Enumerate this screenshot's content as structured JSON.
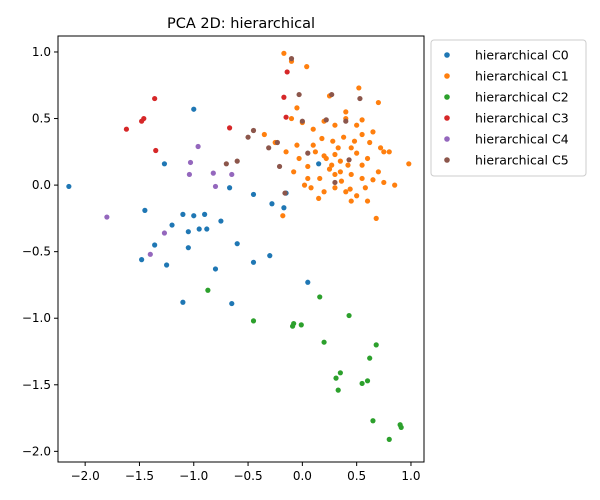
{
  "chart_data": {
    "type": "scatter",
    "title": "PCA 2D: hierarchical",
    "xlabel": "",
    "ylabel": "",
    "xlim": [
      -2.25,
      1.12
    ],
    "ylim": [
      -2.08,
      1.12
    ],
    "xticks": [
      -2.0,
      -1.5,
      -1.0,
      -0.5,
      0.0,
      0.5,
      1.0
    ],
    "xtick_labels": [
      "−2.0",
      "−1.5",
      "−1.0",
      "−0.5",
      "0.0",
      "0.5",
      "1.0"
    ],
    "yticks": [
      -2.0,
      -1.5,
      -1.0,
      -0.5,
      0.0,
      0.5,
      1.0
    ],
    "ytick_labels": [
      "−2.0",
      "−1.5",
      "−1.0",
      "−0.5",
      "0.0",
      "0.5",
      "1.0"
    ],
    "grid": false,
    "legend_position": "outside upper right",
    "series": [
      {
        "name": "hierarchical C0",
        "color": "#1f77b4",
        "points": [
          [
            -2.15,
            -0.01
          ],
          [
            -1.0,
            0.57
          ],
          [
            -1.27,
            0.16
          ],
          [
            -1.45,
            -0.19
          ],
          [
            -1.1,
            -0.22
          ],
          [
            -1.0,
            -0.23
          ],
          [
            -0.9,
            -0.22
          ],
          [
            -1.2,
            -0.3
          ],
          [
            -1.05,
            -0.35
          ],
          [
            -0.95,
            -0.33
          ],
          [
            -0.88,
            -0.33
          ],
          [
            -0.75,
            -0.27
          ],
          [
            -1.36,
            -0.45
          ],
          [
            -1.05,
            -0.47
          ],
          [
            -0.6,
            -0.44
          ],
          [
            -0.67,
            -0.02
          ],
          [
            -0.45,
            -0.07
          ],
          [
            -0.28,
            -0.14
          ],
          [
            -0.17,
            -0.17
          ],
          [
            -1.48,
            -0.56
          ],
          [
            -1.25,
            -0.6
          ],
          [
            -0.8,
            -0.63
          ],
          [
            -0.45,
            -0.58
          ],
          [
            -0.3,
            -0.53
          ],
          [
            -1.1,
            -0.88
          ],
          [
            -0.65,
            -0.89
          ],
          [
            0.05,
            -0.73
          ],
          [
            -0.15,
            -0.06
          ],
          [
            0.15,
            0.16
          ]
        ]
      },
      {
        "name": "hierarchical C1",
        "color": "#ff7f0e",
        "points": [
          [
            -0.17,
            0.99
          ],
          [
            -0.1,
            0.93
          ],
          [
            0.04,
            0.89
          ],
          [
            0.52,
            0.73
          ],
          [
            0.7,
            0.62
          ],
          [
            -0.05,
            0.58
          ],
          [
            0.0,
            0.47
          ],
          [
            -0.1,
            0.5
          ],
          [
            0.25,
            0.67
          ],
          [
            0.4,
            0.55
          ],
          [
            0.55,
            0.49
          ],
          [
            0.65,
            0.4
          ],
          [
            0.45,
            0.28
          ],
          [
            0.72,
            0.28
          ],
          [
            0.75,
            0.25
          ],
          [
            0.5,
            0.24
          ],
          [
            0.3,
            0.23
          ],
          [
            0.2,
            0.22
          ],
          [
            0.1,
            0.3
          ],
          [
            0.05,
            0.14
          ],
          [
            0.25,
            0.12
          ],
          [
            0.35,
            0.1
          ],
          [
            0.45,
            0.08
          ],
          [
            0.55,
            0.05
          ],
          [
            0.65,
            0.04
          ],
          [
            0.75,
            0.02
          ],
          [
            0.85,
            0.0
          ],
          [
            0.98,
            0.16
          ],
          [
            0.3,
            -0.02
          ],
          [
            0.2,
            -0.05
          ],
          [
            0.15,
            -0.1
          ],
          [
            0.4,
            -0.05
          ],
          [
            0.5,
            -0.08
          ],
          [
            0.6,
            -0.12
          ],
          [
            0.68,
            -0.25
          ],
          [
            0.45,
            -0.12
          ],
          [
            0.55,
            0.15
          ],
          [
            0.35,
            0.18
          ],
          [
            0.22,
            0.2
          ],
          [
            -0.35,
            0.38
          ],
          [
            -0.25,
            0.32
          ],
          [
            -0.15,
            0.25
          ],
          [
            -0.05,
            0.3
          ],
          [
            0.1,
            0.42
          ],
          [
            0.2,
            0.48
          ],
          [
            0.3,
            0.45
          ],
          [
            0.55,
            0.38
          ],
          [
            0.48,
            0.33
          ],
          [
            0.38,
            0.36
          ],
          [
            0.28,
            0.33
          ],
          [
            0.18,
            0.35
          ],
          [
            0.12,
            0.25
          ],
          [
            0.02,
            0.0
          ],
          [
            -0.18,
            -0.23
          ],
          [
            0.05,
            0.05
          ],
          [
            0.16,
            0.05
          ],
          [
            0.3,
            0.08
          ],
          [
            0.42,
            0.15
          ],
          [
            0.6,
            0.2
          ],
          [
            0.62,
            0.32
          ],
          [
            0.5,
            0.45
          ],
          [
            0.4,
            0.5
          ],
          [
            0.33,
            0.28
          ],
          [
            0.27,
            0.15
          ],
          [
            0.36,
            0.03
          ],
          [
            0.44,
            -0.03
          ],
          [
            0.58,
            -0.02
          ],
          [
            0.7,
            0.1
          ],
          [
            0.8,
            0.25
          ],
          [
            0.08,
            -0.02
          ],
          [
            -0.08,
            0.1
          ],
          [
            -0.03,
            0.2
          ]
        ]
      },
      {
        "name": "hierarchical C2",
        "color": "#2ca02c",
        "points": [
          [
            -0.87,
            -0.79
          ],
          [
            -0.45,
            -1.02
          ],
          [
            -0.08,
            -1.04
          ],
          [
            -0.09,
            -1.06
          ],
          [
            -0.01,
            -1.05
          ],
          [
            0.16,
            -0.84
          ],
          [
            0.43,
            -0.98
          ],
          [
            0.2,
            -1.18
          ],
          [
            0.68,
            -1.2
          ],
          [
            0.62,
            -1.3
          ],
          [
            0.35,
            -1.41
          ],
          [
            0.31,
            -1.45
          ],
          [
            0.55,
            -1.49
          ],
          [
            0.6,
            -1.47
          ],
          [
            0.33,
            -1.54
          ],
          [
            0.65,
            -1.77
          ],
          [
            0.9,
            -1.8
          ],
          [
            0.91,
            -1.82
          ],
          [
            0.8,
            -1.91
          ]
        ]
      },
      {
        "name": "hierarchical C3",
        "color": "#d62728",
        "points": [
          [
            -1.62,
            0.42
          ],
          [
            -1.48,
            0.48
          ],
          [
            -1.46,
            0.5
          ],
          [
            -1.36,
            0.65
          ],
          [
            -1.35,
            0.26
          ],
          [
            -0.67,
            0.43
          ],
          [
            -0.17,
            0.66
          ],
          [
            -0.14,
            0.85
          ],
          [
            -0.15,
            0.51
          ]
        ]
      },
      {
        "name": "hierarchical C4",
        "color": "#9467bd",
        "points": [
          [
            -1.8,
            -0.24
          ],
          [
            -1.4,
            -0.52
          ],
          [
            -1.27,
            -0.36
          ],
          [
            -0.96,
            0.29
          ],
          [
            -1.03,
            0.17
          ],
          [
            -1.04,
            0.08
          ],
          [
            -0.82,
            0.09
          ],
          [
            -0.8,
            -0.01
          ],
          [
            -0.65,
            0.08
          ]
        ]
      },
      {
        "name": "hierarchical C5",
        "color": "#8c564b",
        "points": [
          [
            -0.1,
            0.95
          ],
          [
            -0.03,
            0.68
          ],
          [
            0.27,
            0.68
          ],
          [
            0.53,
            0.65
          ],
          [
            -0.45,
            0.41
          ],
          [
            -0.5,
            0.36
          ],
          [
            -0.23,
            0.32
          ],
          [
            -0.31,
            0.28
          ],
          [
            -0.6,
            0.18
          ],
          [
            -0.7,
            0.16
          ],
          [
            -0.21,
            0.14
          ],
          [
            0.05,
            0.24
          ],
          [
            0.4,
            0.48
          ],
          [
            0.3,
            0.02
          ],
          [
            0.43,
            0.19
          ],
          [
            -0.16,
            -0.06
          ],
          [
            0.0,
            0.48
          ],
          [
            0.22,
            0.49
          ]
        ]
      }
    ]
  }
}
